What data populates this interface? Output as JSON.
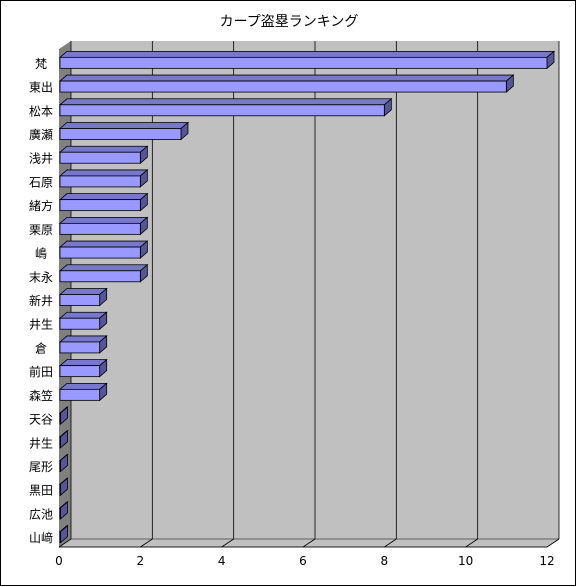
{
  "chart_data": {
    "type": "bar",
    "orientation": "horizontal",
    "style": "3d",
    "title": "カープ盗塁ランキング",
    "xlabel": "",
    "ylabel": "",
    "categories": [
      "梵",
      "東出",
      "松本",
      "廣瀬",
      "浅井",
      "石原",
      "緒方",
      "栗原",
      "嶋",
      "末永",
      "新井",
      "井生",
      "倉",
      "前田",
      "森笠",
      "天谷",
      "井生",
      "尾形",
      "黒田",
      "広池",
      "山﨑"
    ],
    "values": [
      12,
      11,
      8,
      3,
      2,
      2,
      2,
      2,
      2,
      2,
      1,
      1,
      1,
      1,
      1,
      0,
      0,
      0,
      0,
      0,
      0
    ],
    "xlim": [
      0,
      12
    ],
    "xticks": [
      "0",
      "2",
      "4",
      "6",
      "8",
      "10",
      "12"
    ],
    "grid": true,
    "legend": "none",
    "colors": {
      "bar_front": "#9999ff",
      "bar_top": "#7777cc",
      "bar_side": "#555599",
      "wall": "#c0c0c0",
      "floor": "#808080",
      "gridline": "#000000"
    }
  }
}
